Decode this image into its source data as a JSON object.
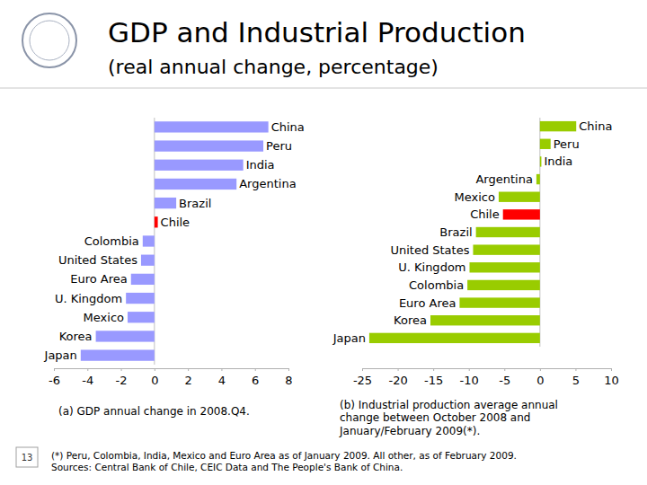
{
  "header": {
    "title": "GDP and Industrial Production",
    "subtitle": "(real annual change, percentage)"
  },
  "footer": {
    "page": "13",
    "note": "(*) Peru, Colombia, India, Mexico and Euro Area as of January 2009. All other, as of February 2009.",
    "source": "Sources: Central Bank of Chile, CEIC Data and The People's Bank of China."
  },
  "chart_data": [
    {
      "type": "bar",
      "orientation": "horizontal",
      "title": "(a) GDP annual change in 2008.Q4.",
      "categories": [
        "China",
        "Peru",
        "India",
        "Argentina",
        "Brazil",
        "Chile",
        "Colombia",
        "United States",
        "Euro Area",
        "U. Kingdom",
        "Mexico",
        "Korea",
        "Japan"
      ],
      "values": [
        6.8,
        6.5,
        5.3,
        4.9,
        1.3,
        0.2,
        -0.7,
        -0.8,
        -1.4,
        -1.7,
        -1.6,
        -3.5,
        -4.4
      ],
      "colors": [
        "#9999ff",
        "#9999ff",
        "#9999ff",
        "#9999ff",
        "#9999ff",
        "#ff0000",
        "#9999ff",
        "#9999ff",
        "#9999ff",
        "#9999ff",
        "#9999ff",
        "#9999ff",
        "#9999ff"
      ],
      "xlim": [
        -6,
        8
      ],
      "xticks": [
        -6,
        -4,
        -2,
        0,
        2,
        4,
        6,
        8
      ]
    },
    {
      "type": "bar",
      "orientation": "horizontal",
      "title": "(b) Industrial production average annual change between October 2008 and January/February 2009(*).",
      "categories": [
        "China",
        "Peru",
        "India",
        "Argentina",
        "Mexico",
        "Chile",
        "Brazil",
        "United States",
        "U. Kingdom",
        "Colombia",
        "Euro Area",
        "Korea",
        "Japan"
      ],
      "values": [
        5.1,
        1.5,
        0.2,
        -0.5,
        -5.8,
        -5.2,
        -9.0,
        -9.4,
        -9.9,
        -10.2,
        -11.3,
        -15.4,
        -24.0
      ],
      "colors": [
        "#99cc00",
        "#99cc00",
        "#99cc00",
        "#99cc00",
        "#99cc00",
        "#ff0000",
        "#99cc00",
        "#99cc00",
        "#99cc00",
        "#99cc00",
        "#99cc00",
        "#99cc00",
        "#99cc00"
      ],
      "xlim": [
        -25,
        10
      ],
      "xticks": [
        -25,
        -20,
        -15,
        -10,
        -5,
        0,
        5,
        10
      ]
    }
  ]
}
